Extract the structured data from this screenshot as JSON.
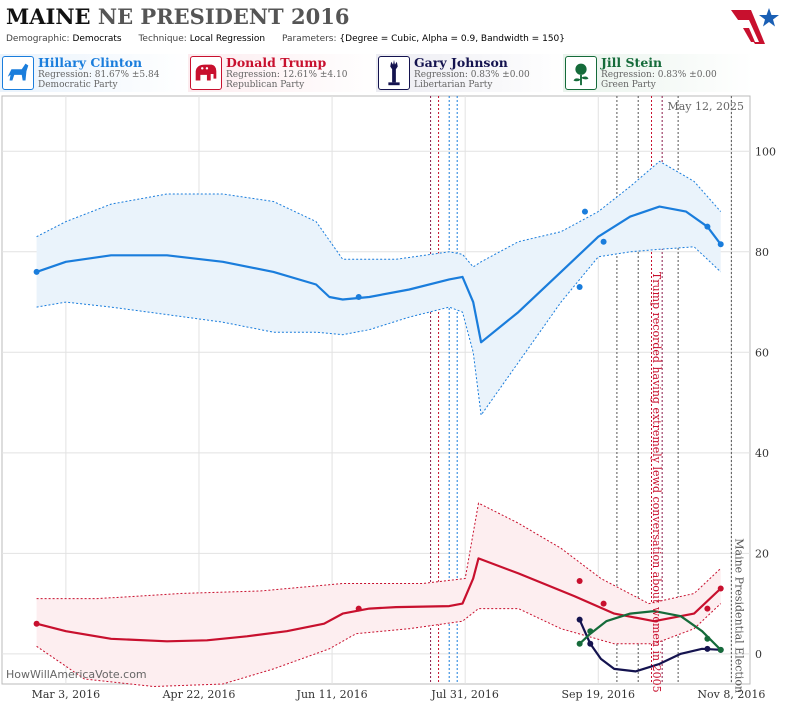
{
  "header": {
    "title_state": "MAINE",
    "title_rest": "NE PRESIDENT 2016",
    "demographic_label": "Demographic:",
    "demographic_value": "Democrats",
    "technique_label": "Technique:",
    "technique_value": "Local Regression",
    "parameters_label": "Parameters:",
    "parameters_value": "{Degree = Cubic, Alpha = 0.9, Bandwidth = 150}"
  },
  "candidates": [
    {
      "name": "Hillary Clinton",
      "regression": "Regression: 81.67% ±5.84",
      "party": "Democratic Party",
      "color": "#1a7ddc",
      "bg": "#eaf3fc",
      "icon": "donkey-icon"
    },
    {
      "name": "Donald Trump",
      "regression": "Regression: 12.61% ±4.10",
      "party": "Republican Party",
      "color": "#c8102e",
      "bg": "#fcecef",
      "icon": "elephant-icon"
    },
    {
      "name": "Gary Johnson",
      "regression": "Regression: 0.83% ±0.00",
      "party": "Libertarian Party",
      "color": "#14134f",
      "bg": "#ececf2",
      "icon": "liberty-statue-icon"
    },
    {
      "name": "Jill Stein",
      "regression": "Regression: 0.83% ±0.00",
      "party": "Green Party",
      "color": "#156b3a",
      "bg": "#e9f3ec",
      "icon": "rose-icon"
    }
  ],
  "credit": "HowWillAmericaVote.com",
  "chart_data": {
    "type": "line",
    "date_label": "May 12, 2025",
    "x_ticks": [
      "Mar 3, 2016",
      "Apr 22, 2016",
      "Jun 11, 2016",
      "Jul 31, 2016",
      "Sep 19, 2016",
      "Nov 8, 2016"
    ],
    "x_range": [
      "2016-02-08",
      "2016-11-15"
    ],
    "y_ticks": [
      0,
      20,
      40,
      60,
      80,
      100
    ],
    "ylim": [
      -6,
      111
    ],
    "annotations": [
      {
        "date": "2016-10-08",
        "text": "Trump recorded having extremely lewd conversation about women in 2005",
        "color": "#c8102e"
      },
      {
        "date": "2016-11-08",
        "text": "Maine Presidential Election",
        "color": "#555555"
      }
    ],
    "event_lines": [
      {
        "date": "2016-07-18",
        "color": "#8b1a4a"
      },
      {
        "date": "2016-07-21",
        "color": "#c8102e"
      },
      {
        "date": "2016-07-25",
        "color": "#1a7ddc"
      },
      {
        "date": "2016-07-28",
        "color": "#1a7ddc"
      },
      {
        "date": "2016-09-26",
        "color": "#555555"
      },
      {
        "date": "2016-10-04",
        "color": "#555555"
      },
      {
        "date": "2016-10-09",
        "color": "#c8102e"
      },
      {
        "date": "2016-10-13",
        "color": "#8b1a4a"
      },
      {
        "date": "2016-10-19",
        "color": "#555555"
      },
      {
        "date": "2016-11-08",
        "color": "#555555"
      }
    ],
    "series": [
      {
        "name": "Hillary Clinton",
        "color": "#1a7ddc",
        "fill": "#eaf3fb",
        "line": [
          [
            "2016-02-21",
            76
          ],
          [
            "2016-03-03",
            78
          ],
          [
            "2016-03-20",
            79.3
          ],
          [
            "2016-04-10",
            79.3
          ],
          [
            "2016-05-01",
            78
          ],
          [
            "2016-05-20",
            76
          ],
          [
            "2016-06-05",
            73.5
          ],
          [
            "2016-06-10",
            71
          ],
          [
            "2016-06-15",
            70.5
          ],
          [
            "2016-06-25",
            71
          ],
          [
            "2016-07-10",
            72.5
          ],
          [
            "2016-07-25",
            74.5
          ],
          [
            "2016-07-30",
            75
          ],
          [
            "2016-08-03",
            70
          ],
          [
            "2016-08-06",
            62
          ],
          [
            "2016-08-20",
            68
          ],
          [
            "2016-09-05",
            76
          ],
          [
            "2016-09-19",
            83
          ],
          [
            "2016-10-01",
            87
          ],
          [
            "2016-10-12",
            89
          ],
          [
            "2016-10-22",
            88
          ],
          [
            "2016-10-30",
            85
          ],
          [
            "2016-11-04",
            81.5
          ]
        ],
        "upper": [
          [
            "2016-02-21",
            83
          ],
          [
            "2016-03-03",
            86
          ],
          [
            "2016-03-20",
            89.5
          ],
          [
            "2016-04-10",
            91.5
          ],
          [
            "2016-05-01",
            91.5
          ],
          [
            "2016-05-20",
            90
          ],
          [
            "2016-06-05",
            86
          ],
          [
            "2016-06-15",
            78.5
          ],
          [
            "2016-07-05",
            78.5
          ],
          [
            "2016-07-25",
            80
          ],
          [
            "2016-07-30",
            79.5
          ],
          [
            "2016-08-03",
            77
          ],
          [
            "2016-08-06",
            78
          ],
          [
            "2016-08-20",
            82
          ],
          [
            "2016-09-05",
            84
          ],
          [
            "2016-09-19",
            88
          ],
          [
            "2016-10-01",
            93
          ],
          [
            "2016-10-12",
            98
          ],
          [
            "2016-10-25",
            94
          ],
          [
            "2016-11-04",
            88
          ]
        ],
        "lower": [
          [
            "2016-02-21",
            69
          ],
          [
            "2016-03-03",
            70
          ],
          [
            "2016-03-20",
            69
          ],
          [
            "2016-04-10",
            67.5
          ],
          [
            "2016-05-01",
            66
          ],
          [
            "2016-05-20",
            64
          ],
          [
            "2016-06-05",
            64
          ],
          [
            "2016-06-15",
            63.5
          ],
          [
            "2016-06-25",
            64.5
          ],
          [
            "2016-07-10",
            67
          ],
          [
            "2016-07-25",
            69
          ],
          [
            "2016-07-30",
            68
          ],
          [
            "2016-08-03",
            60
          ],
          [
            "2016-08-06",
            47.5
          ],
          [
            "2016-08-20",
            58
          ],
          [
            "2016-09-05",
            70
          ],
          [
            "2016-09-19",
            79
          ],
          [
            "2016-10-01",
            80
          ],
          [
            "2016-10-12",
            80.5
          ],
          [
            "2016-10-25",
            81
          ],
          [
            "2016-11-04",
            76
          ]
        ],
        "points": [
          [
            "2016-02-21",
            76
          ],
          [
            "2016-06-21",
            71
          ],
          [
            "2016-09-12",
            73
          ],
          [
            "2016-09-14",
            88
          ],
          [
            "2016-09-21",
            82
          ],
          [
            "2016-10-30",
            85
          ],
          [
            "2016-11-04",
            81.5
          ]
        ]
      },
      {
        "name": "Donald Trump",
        "color": "#c8102e",
        "fill": "#fdeef0",
        "line": [
          [
            "2016-02-21",
            6
          ],
          [
            "2016-03-03",
            4.5
          ],
          [
            "2016-03-20",
            3
          ],
          [
            "2016-04-10",
            2.5
          ],
          [
            "2016-04-25",
            2.7
          ],
          [
            "2016-05-10",
            3.5
          ],
          [
            "2016-05-25",
            4.5
          ],
          [
            "2016-06-08",
            6
          ],
          [
            "2016-06-15",
            8
          ],
          [
            "2016-06-25",
            9
          ],
          [
            "2016-07-05",
            9.3
          ],
          [
            "2016-07-25",
            9.5
          ],
          [
            "2016-07-30",
            10
          ],
          [
            "2016-08-03",
            15
          ],
          [
            "2016-08-05",
            19
          ],
          [
            "2016-08-20",
            16
          ],
          [
            "2016-09-10",
            11.5
          ],
          [
            "2016-09-25",
            8
          ],
          [
            "2016-10-10",
            6.5
          ],
          [
            "2016-10-25",
            8
          ],
          [
            "2016-11-04",
            13
          ]
        ],
        "upper": [
          [
            "2016-02-21",
            11
          ],
          [
            "2016-03-15",
            11
          ],
          [
            "2016-04-15",
            12
          ],
          [
            "2016-05-15",
            12.5
          ],
          [
            "2016-06-15",
            14
          ],
          [
            "2016-07-15",
            14
          ],
          [
            "2016-07-31",
            15
          ],
          [
            "2016-08-05",
            30
          ],
          [
            "2016-08-20",
            26
          ],
          [
            "2016-09-05",
            21
          ],
          [
            "2016-09-20",
            15
          ],
          [
            "2016-10-08",
            10
          ],
          [
            "2016-10-25",
            12
          ],
          [
            "2016-11-04",
            17
          ]
        ],
        "lower": [
          [
            "2016-02-21",
            1.5
          ],
          [
            "2016-03-10",
            -5
          ],
          [
            "2016-04-05",
            -6.5
          ],
          [
            "2016-05-01",
            -6
          ],
          [
            "2016-05-20",
            -3
          ],
          [
            "2016-06-10",
            1
          ],
          [
            "2016-06-20",
            4
          ],
          [
            "2016-07-10",
            5
          ],
          [
            "2016-07-30",
            6.5
          ],
          [
            "2016-08-05",
            9
          ],
          [
            "2016-08-20",
            9
          ],
          [
            "2016-09-05",
            5
          ],
          [
            "2016-09-25",
            2
          ],
          [
            "2016-10-10",
            2
          ],
          [
            "2016-10-25",
            5
          ],
          [
            "2016-11-04",
            10
          ]
        ],
        "points": [
          [
            "2016-02-21",
            6
          ],
          [
            "2016-06-21",
            9
          ],
          [
            "2016-09-12",
            14.5
          ],
          [
            "2016-09-21",
            10
          ],
          [
            "2016-10-30",
            9
          ],
          [
            "2016-11-04",
            13
          ]
        ]
      },
      {
        "name": "Gary Johnson",
        "color": "#14134f",
        "line": [
          [
            "2016-09-12",
            6.8
          ],
          [
            "2016-09-16",
            2
          ],
          [
            "2016-09-20",
            -1
          ],
          [
            "2016-09-25",
            -3
          ],
          [
            "2016-10-03",
            -3.5
          ],
          [
            "2016-10-12",
            -2
          ],
          [
            "2016-10-20",
            0
          ],
          [
            "2016-10-28",
            1
          ],
          [
            "2016-11-04",
            0.8
          ]
        ],
        "points": [
          [
            "2016-09-12",
            6.8
          ],
          [
            "2016-09-16",
            2
          ],
          [
            "2016-10-30",
            1
          ],
          [
            "2016-11-04",
            0.8
          ]
        ]
      },
      {
        "name": "Jill Stein",
        "color": "#156b3a",
        "line": [
          [
            "2016-09-12",
            2
          ],
          [
            "2016-09-16",
            4
          ],
          [
            "2016-09-22",
            6.5
          ],
          [
            "2016-10-01",
            8
          ],
          [
            "2016-10-10",
            8.5
          ],
          [
            "2016-10-20",
            7.5
          ],
          [
            "2016-10-28",
            4.5
          ],
          [
            "2016-11-04",
            0.8
          ]
        ],
        "points": [
          [
            "2016-09-12",
            2
          ],
          [
            "2016-09-16",
            4.5
          ],
          [
            "2016-10-30",
            3
          ],
          [
            "2016-11-04",
            0.8
          ]
        ]
      }
    ]
  }
}
